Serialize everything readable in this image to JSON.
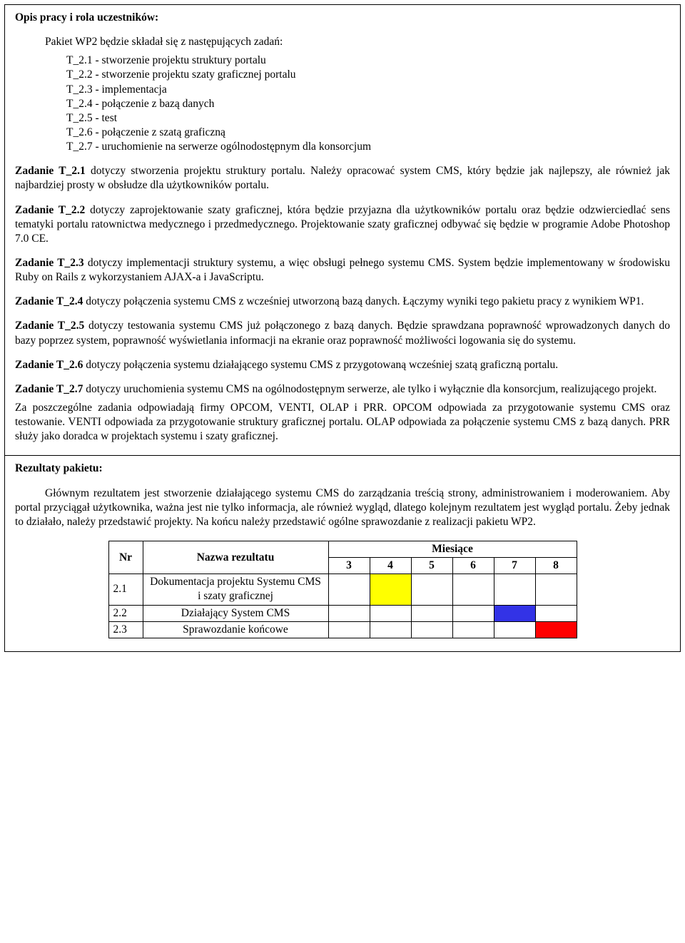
{
  "section1": {
    "heading": "Opis pracy i rola uczestników:",
    "intro": "Pakiet WP2 będzie składał się z następujących zadań:",
    "tasks": [
      "T_2.1 - stworzenie projektu struktury portalu",
      "T_2.2 - stworzenie projektu szaty graficznej portalu",
      "T_2.3 - implementacja",
      "T_2.4 - połączenie z bazą danych",
      "T_2.5 - test",
      "T_2.6 - połączenie z szatą graficzną",
      "T_2.7 - uruchomienie na serwerze ogólnodostępnym dla konsorcjum"
    ],
    "paragraphs": [
      {
        "lead": "Zadanie T_2.1",
        "rest": " dotyczy stworzenia projektu struktury portalu. Należy opracować system CMS, który będzie jak najlepszy, ale również jak najbardziej prosty w obsłudze dla użytkowników portalu."
      },
      {
        "lead": "Zadanie T_2.2",
        "rest": " dotyczy zaprojektowanie szaty graficznej, która będzie przyjazna dla użytkowników portalu oraz będzie odzwierciedlać sens tematyki portalu ratownictwa medycznego i przedmedycznego. Projektowanie szaty graficznej odbywać się będzie w programie Adobe Photoshop 7.0 CE."
      },
      {
        "lead": "Zadanie T_2.3",
        "rest": " dotyczy implementacji struktury systemu, a więc obsługi pełnego systemu CMS. System będzie implementowany w środowisku Ruby on Rails z wykorzystaniem AJAX-a i JavaScriptu."
      },
      {
        "lead": "Zadanie T_2.4",
        "rest": " dotyczy połączenia systemu CMS z wcześniej utworzoną bazą danych. Łączymy wyniki tego pakietu pracy z wynikiem WP1."
      },
      {
        "lead": "Zadanie T_2.5",
        "rest": " dotyczy testowania systemu CMS już połączonego z bazą danych. Będzie sprawdzana poprawność wprowadzonych danych do bazy poprzez system, poprawność wyświetlania informacji na ekranie oraz poprawność możliwości logowania się do systemu."
      },
      {
        "lead": "Zadanie T_2.6",
        "rest": " dotyczy połączenia systemu działającego systemu CMS z przygotowaną wcześniej szatą graficzną portalu."
      },
      {
        "lead": "Zadanie T_2.7",
        "rest": " dotyczy uruchomienia systemu CMS na ogólnodostępnym serwerze, ale tylko i wyłącznie dla konsorcjum, realizującego projekt."
      }
    ],
    "final": "Za poszczególne zadania odpowiadają firmy OPCOM, VENTI, OLAP i PRR. OPCOM odpowiada za przygotowanie systemu CMS oraz testowanie. VENTI odpowiada za przygotowanie struktury graficznej portalu. OLAP odpowiada za połączenie systemu CMS z bazą danych. PRR służy jako doradca w projektach systemu i szaty graficznej."
  },
  "section2": {
    "heading": "Rezultaty pakietu:",
    "intro": "Głównym rezultatem jest stworzenie działającego systemu CMS do zarządzania treścią strony, administrowaniem i moderowaniem. Aby portal przyciągał użytkownika, ważna jest nie tylko informacja, ale również wygląd, dlatego kolejnym rezultatem jest wygląd portalu. Żeby jednak to działało, należy przedstawić projekty. Na końcu należy przedstawić ogólne sprawozdanie z realizacji pakietu WP2.",
    "table": {
      "headers": {
        "nr": "Nr",
        "name": "Nazwa rezultatu",
        "months": "Miesiące"
      },
      "month_labels": [
        "3",
        "4",
        "5",
        "6",
        "7",
        "8"
      ],
      "rows": [
        {
          "nr": "2.1",
          "name": "Dokumentacja projektu Systemu CMS i szaty graficznej",
          "fill_index": 1,
          "fill_color": "#ffff00"
        },
        {
          "nr": "2.2",
          "name": "Działający System CMS",
          "fill_index": 4,
          "fill_color": "#3333e6"
        },
        {
          "nr": "2.3",
          "name": "Sprawozdanie końcowe",
          "fill_index": 5,
          "fill_color": "#ff0000"
        }
      ]
    }
  }
}
